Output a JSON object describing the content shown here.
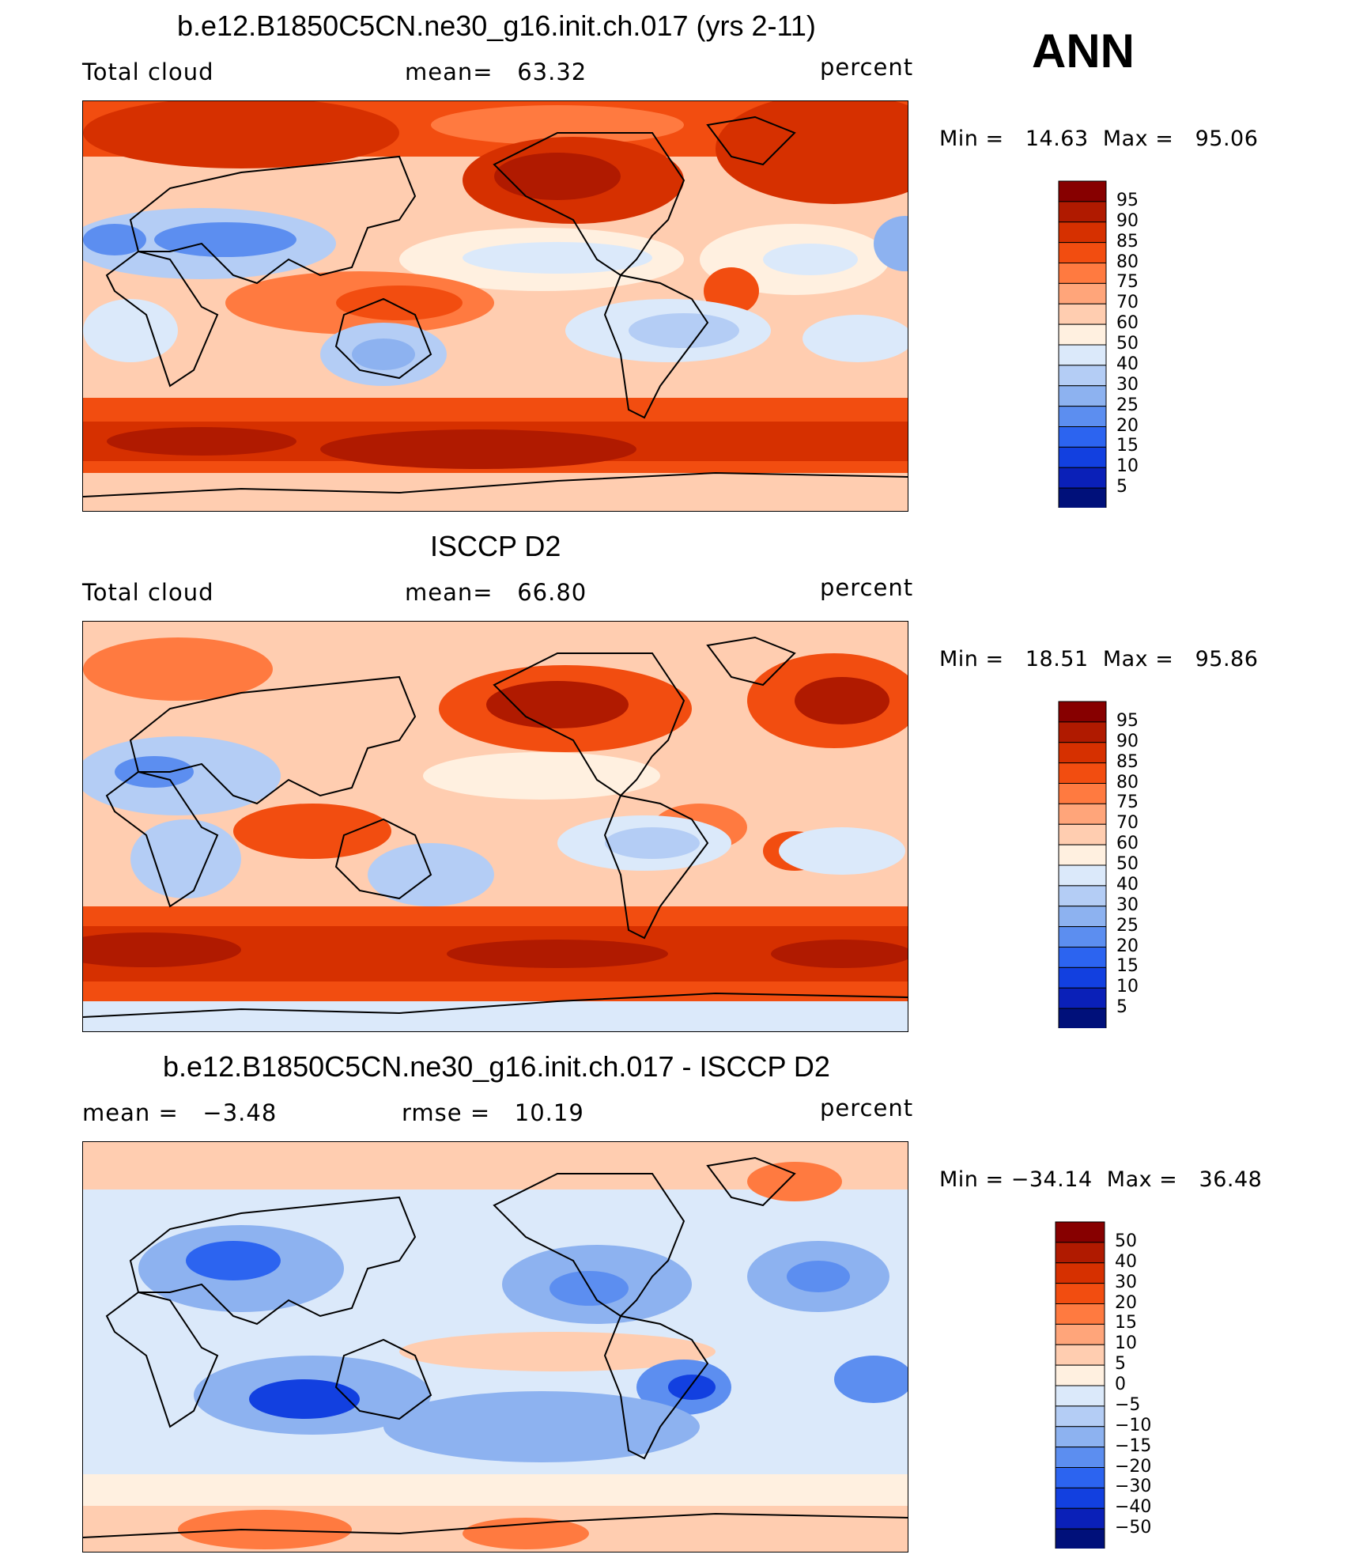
{
  "header": {
    "season": "ANN"
  },
  "panels": [
    {
      "title": "b.e12.B1850C5CN.ne30_g16.init.ch.017 (yrs 2-11)",
      "left_label": "Total cloud",
      "center_label": "mean=   63.32",
      "right_label": "percent",
      "minmax": "Min =   14.63  Max =   95.06",
      "palette": "abs",
      "colorbar_levels": [
        "95",
        "90",
        "85",
        "80",
        "75",
        "70",
        "60",
        "50",
        "40",
        "30",
        "25",
        "20",
        "15",
        "10",
        "5"
      ]
    },
    {
      "title": "ISCCP D2",
      "left_label": "Total cloud",
      "center_label": "mean=   66.80",
      "right_label": "percent",
      "minmax": "Min =   18.51  Max =   95.86",
      "palette": "abs",
      "colorbar_levels": [
        "95",
        "90",
        "85",
        "80",
        "75",
        "70",
        "60",
        "50",
        "40",
        "30",
        "25",
        "20",
        "15",
        "10",
        "5"
      ]
    },
    {
      "title": "b.e12.B1850C5CN.ne30_g16.init.ch.017 - ISCCP D2",
      "left_label": "mean =   −3.48",
      "center_label": "rmse =   10.19",
      "right_label": "percent",
      "minmax": "Min = −34.14  Max =   36.48",
      "palette": "diff",
      "colorbar_levels": [
        "50",
        "40",
        "30",
        "20",
        "15",
        "10",
        "5",
        "0",
        "−5",
        "−10",
        "−15",
        "−20",
        "−30",
        "−40",
        "−50"
      ]
    }
  ],
  "colors": {
    "abs_scale": [
      "#870000",
      "#b01a00",
      "#d63000",
      "#f24d10",
      "#ff7a40",
      "#ffa57a",
      "#ffcdb0",
      "#fff0e0",
      "#dbe9fa",
      "#b4cdf5",
      "#8db2f0",
      "#5c8ef0",
      "#2c64f0",
      "#1240e0",
      "#0a20b8",
      "#00107a"
    ],
    "diff_scale": [
      "#870000",
      "#b01a00",
      "#d63000",
      "#f24d10",
      "#ff7a40",
      "#ffa57a",
      "#ffcdb0",
      "#fff0e0",
      "#dbe9fa",
      "#b4cdf5",
      "#8db2f0",
      "#5c8ef0",
      "#2c64f0",
      "#1240e0",
      "#0a20b8",
      "#00107a"
    ]
  }
}
